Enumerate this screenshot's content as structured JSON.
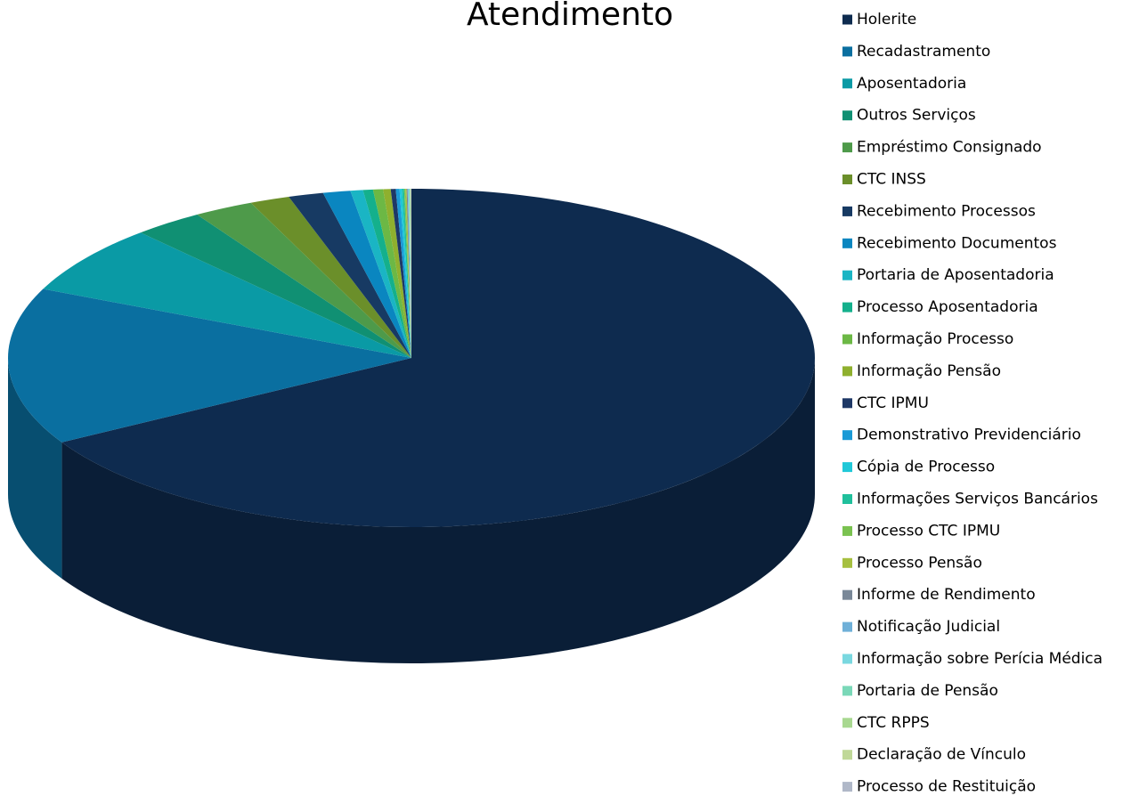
{
  "chart_data": {
    "type": "pie3d",
    "title": "Atendimento",
    "categories": [
      "Holerite",
      "Recadastramento",
      "Aposentadoria",
      "Outros Serviços",
      "Empréstimo Consignado",
      "CTC INSS",
      "Recebimento Processos",
      "Recebimento Documentos",
      "Portaria de Aposentadoria",
      "Processo Aposentadoria",
      "Informação Processo",
      "Informação Pensão",
      "CTC IPMU",
      "Demonstrativo Previdenciário",
      "Cópia de Processo",
      "Informações Serviços Bancários",
      "Processo CTC IPMU",
      "Processo Pensão",
      "Informe de Rendimento",
      "Notificação Judicial",
      "Informação sobre Perícia Médica",
      "Portaria de Pensão",
      "CTC RPPS",
      "Declaração de Vínculo",
      "Processo de Restituição"
    ],
    "values": [
      66.7,
      15,
      6.6,
      2.8,
      2.4,
      1.6,
      1.4,
      1.1,
      0.5,
      0.4,
      0.4,
      0.3,
      0.2,
      0.15,
      0.1,
      0.08,
      0.05,
      0.05,
      0.04,
      0.03,
      0.03,
      0.03,
      0.02,
      0.02,
      0.02
    ],
    "colors": [
      "#0e2b4f",
      "#0a6fa0",
      "#0a9aa5",
      "#109073",
      "#4e9a4a",
      "#6b8f2a",
      "#173a63",
      "#0a86c0",
      "#1ab5c4",
      "#14b08c",
      "#6cb845",
      "#8fb02e",
      "#1e3866",
      "#1a9ad6",
      "#20c8d8",
      "#20c09c",
      "#7ac250",
      "#a6c040",
      "#7a8898",
      "#6fb0d8",
      "#7ad8e0",
      "#7ad8b8",
      "#a8d890",
      "#c0d898",
      "#b0b8c8"
    ],
    "legend": "right"
  }
}
